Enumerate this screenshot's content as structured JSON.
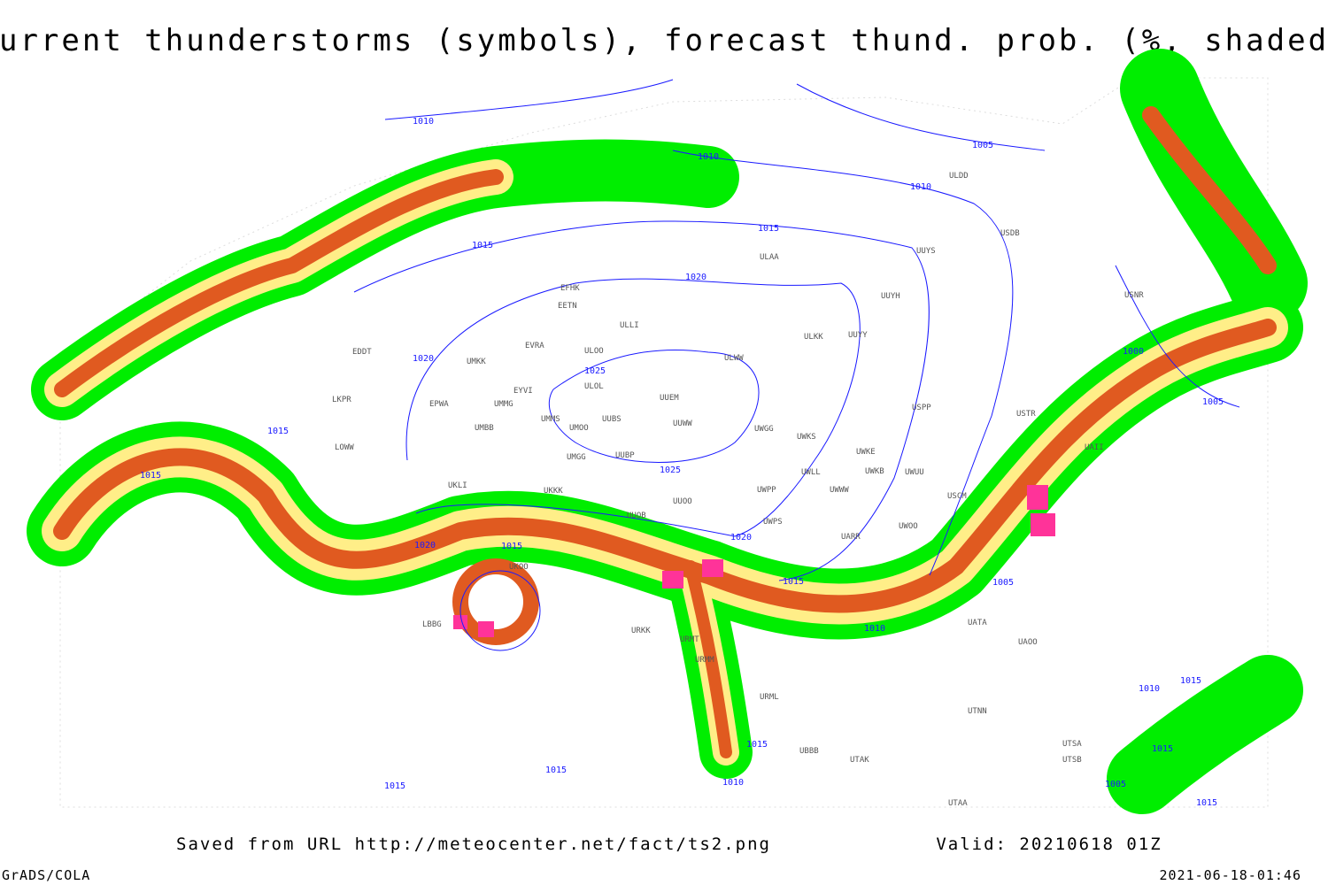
{
  "title": "Current thunderstorms (symbols), forecast thund. prob. (%, shaded)",
  "footer": {
    "saved": "Saved from URL http://meteocenter.net/fact/ts2.png",
    "valid": "Valid: 20210618 01Z",
    "software": "GrADS/COLA",
    "timestamp": "2021-06-18-01:46"
  },
  "isobar_labels": [
    "1010",
    "1010",
    "1005",
    "1010",
    "1015",
    "1015",
    "1020",
    "1020",
    "1025",
    "1025",
    "1015",
    "1015",
    "1020",
    "1015",
    "1020",
    "1015",
    "1005",
    "1010",
    "1000",
    "1005",
    "1015",
    "1015",
    "1015",
    "1010",
    "1010",
    "1015",
    "1015",
    "1005",
    "1015"
  ],
  "stations": [
    "ULDD",
    "USDB",
    "UUYS",
    "ULAA",
    "UUYH",
    "EFHK",
    "EETN",
    "ULLI",
    "ULKK",
    "UUYY",
    "EVRA",
    "ULOO",
    "EDDT",
    "UMKK",
    "ULWW",
    "ULOL",
    "UUEM",
    "EYVI",
    "LKPR",
    "EPWA",
    "UMMG",
    "USPP",
    "USTR",
    "UMMS",
    "UUBS",
    "UUWW",
    "UMOO",
    "UWGG",
    "UWKS",
    "UMBB",
    "LOWW",
    "UWKE",
    "UUBP",
    "UMGG",
    "UWUU",
    "UWKB",
    "UWLL",
    "UKLI",
    "UKKK",
    "UWWW",
    "UWPP",
    "USCM",
    "UUOO",
    "UUOB",
    "UWPS",
    "UARR",
    "UWOO",
    "UKOO",
    "URKK",
    "URMT",
    "URMM",
    "URML",
    "UATA",
    "UAOO",
    "UTNN",
    "UTAK",
    "UBBB",
    "UTSA",
    "UTSB",
    "UTAA",
    "LBBG",
    "USNR",
    "UAII"
  ]
}
